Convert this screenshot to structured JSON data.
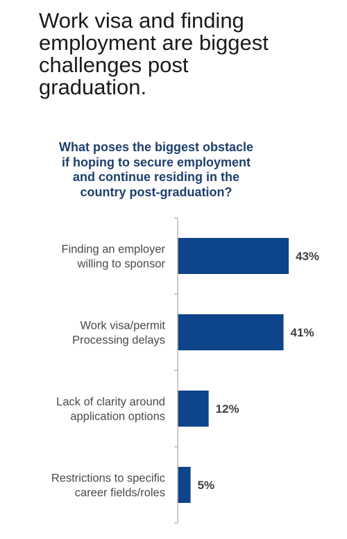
{
  "headline": {
    "lines": [
      "Work visa and finding",
      "employment are biggest",
      "challenges post",
      "graduation."
    ]
  },
  "chart_data": {
    "type": "bar",
    "orientation": "horizontal",
    "title_lines": [
      "What poses the biggest obstacle",
      "if hoping to secure employment",
      "and continue residing in the",
      "country post-graduation?"
    ],
    "categories": [
      [
        "Finding an employer",
        "willing to sponsor"
      ],
      [
        "Work visa/permit",
        "Processing delays"
      ],
      [
        "Lack of clarity around",
        "application options"
      ],
      [
        "Restrictions to specific",
        "career fields/roles"
      ]
    ],
    "values": [
      43,
      41,
      12,
      5
    ],
    "value_labels": [
      "43%",
      "41%",
      "12%",
      "5%"
    ],
    "unit": "%",
    "xlim": [
      0,
      43
    ],
    "grid": false,
    "legend": "none",
    "bar_color": "#0e4489",
    "axis_color": "#b8b8b8"
  }
}
